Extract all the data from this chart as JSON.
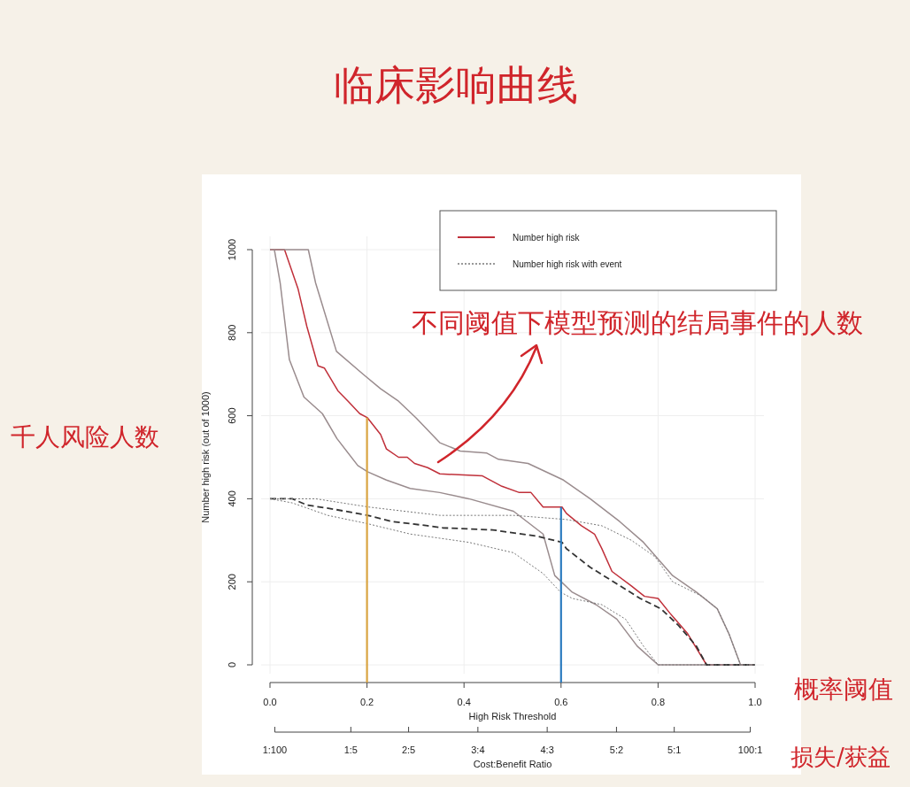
{
  "chart_data": {
    "type": "line",
    "title": "临床影响曲线",
    "xlabel": "High Risk Threshold",
    "ylabel": "Number high risk (out of 1000)",
    "x2label": "Cost:Benefit Ratio",
    "xlim": [
      0,
      1
    ],
    "ylim": [
      0,
      1000
    ],
    "xticks": [
      {
        "value": 0,
        "label": "0.0"
      },
      {
        "value": 0.2,
        "label": "0.2"
      },
      {
        "value": 0.4,
        "label": "0.4"
      },
      {
        "value": 0.6,
        "label": "0.6"
      },
      {
        "value": 0.8,
        "label": "0.8"
      },
      {
        "value": 1,
        "label": "1.0"
      }
    ],
    "yticks": [
      0,
      200,
      400,
      600,
      800,
      1000
    ],
    "grid": true,
    "legend": "top right",
    "series": [
      {
        "name": "Number high risk",
        "color": "#c0303a",
        "line_style": "solid",
        "x": [
          0,
          0.03,
          0.058,
          0.076,
          0.099,
          0.112,
          0.14,
          0.161,
          0.185,
          0.201,
          0.228,
          0.24,
          0.265,
          0.283,
          0.298,
          0.325,
          0.35,
          0.438,
          0.478,
          0.514,
          0.538,
          0.563,
          0.602,
          0.611,
          0.642,
          0.669,
          0.684,
          0.705,
          0.745,
          0.772,
          0.8,
          0.824,
          0.861,
          0.9,
          1
        ],
        "values": [
          1000,
          1000,
          905,
          815,
          720,
          715,
          660,
          635,
          605,
          595,
          555,
          520,
          500,
          500,
          485,
          475,
          460,
          455,
          430,
          415,
          415,
          380,
          380,
          365,
          335,
          315,
          280,
          225,
          190,
          165,
          160,
          125,
          75,
          0,
          0
        ]
      },
      {
        "color": "#9a8c8e",
        "line_style": "solid",
        "x": [
          0,
          0.079,
          0.094,
          0.137,
          0.192,
          0.228,
          0.265,
          0.301,
          0.35,
          0.392,
          0.447,
          0.471,
          0.532,
          0.605,
          0.66,
          0.721,
          0.77,
          0.83,
          0.879,
          0.922,
          0.946,
          0.97,
          1
        ],
        "values": [
          1000,
          1000,
          920,
          755,
          700,
          665,
          635,
          595,
          535,
          515,
          510,
          495,
          485,
          445,
          400,
          345,
          295,
          215,
          175,
          135,
          75,
          0,
          0
        ]
      },
      {
        "color": "#9a8c8e",
        "line_style": "solid",
        "x": [
          0.009,
          0.021,
          0.04,
          0.07,
          0.108,
          0.138,
          0.181,
          0.201,
          0.24,
          0.289,
          0.35,
          0.41,
          0.502,
          0.563,
          0.587,
          0.623,
          0.672,
          0.715,
          0.757,
          0.8,
          1
        ],
        "values": [
          1000,
          920,
          735,
          645,
          605,
          545,
          480,
          465,
          445,
          425,
          415,
          400,
          370,
          315,
          215,
          175,
          145,
          110,
          45,
          0,
          0
        ]
      },
      {
        "name": "Number high risk with event",
        "color": "#333333",
        "line_style": "dashed",
        "x": [
          0,
          0.046,
          0.076,
          0.131,
          0.201,
          0.252,
          0.325,
          0.356,
          0.459,
          0.55,
          0.602,
          0.611,
          0.66,
          0.715,
          0.763,
          0.806,
          0.842,
          0.879,
          0.9,
          1
        ],
        "values": [
          400,
          400,
          385,
          375,
          360,
          345,
          335,
          330,
          325,
          310,
          295,
          280,
          235,
          195,
          160,
          135,
          95,
          45,
          0,
          0
        ]
      },
      {
        "color": "#777777",
        "line_style": "dotted",
        "x": [
          0,
          0.094,
          0.204,
          0.35,
          0.502,
          0.611,
          0.684,
          0.745,
          0.794,
          0.83,
          0.891,
          0.922,
          0.946,
          0.97,
          1
        ],
        "values": [
          400,
          400,
          380,
          360,
          360,
          350,
          335,
          300,
          260,
          200,
          165,
          135,
          75,
          0,
          0
        ]
      },
      {
        "color": "#777777",
        "line_style": "dotted",
        "x": [
          0,
          0.046,
          0.119,
          0.201,
          0.289,
          0.35,
          0.41,
          0.502,
          0.563,
          0.599,
          0.623,
          0.684,
          0.733,
          0.77,
          0.8,
          1
        ],
        "values": [
          400,
          390,
          360,
          340,
          315,
          305,
          295,
          270,
          220,
          175,
          160,
          145,
          110,
          45,
          0,
          0
        ]
      }
    ],
    "ref_lines": [
      {
        "axis": "x",
        "value": 0.2,
        "color": "#d9a441"
      },
      {
        "axis": "x",
        "value": 0.6,
        "color": "#2b7bbf"
      }
    ],
    "annotations": [
      "不同阈值下模型预测的结局事件的人数",
      "千人风险人数",
      "概率阈值",
      "损失/获益",
      "1:100",
      "1:5",
      "2:5",
      "3:4",
      "4:3",
      "5:2",
      "5:1",
      "100:1"
    ]
  }
}
